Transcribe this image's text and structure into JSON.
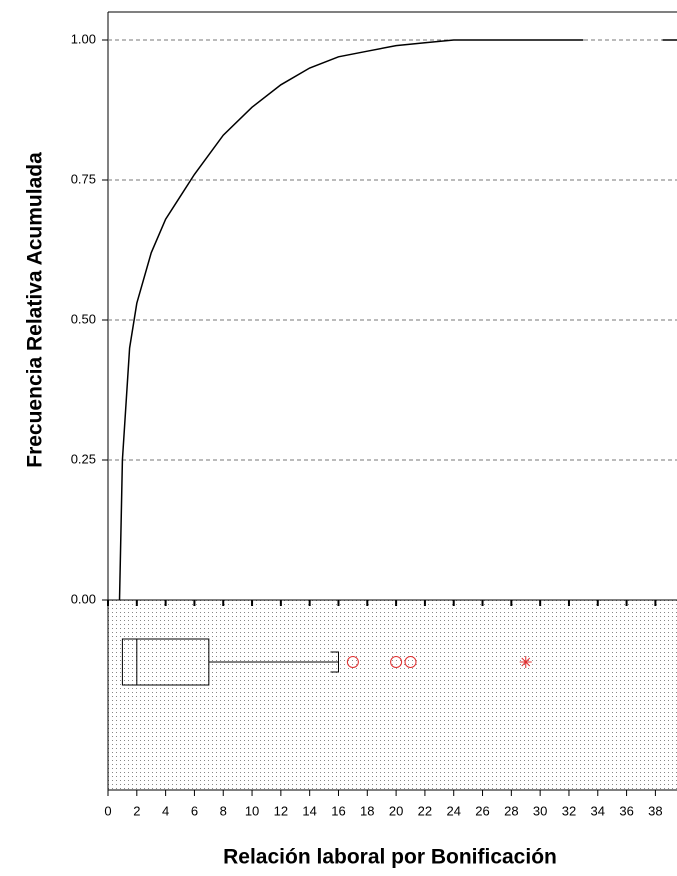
{
  "chart_data": {
    "type": "line",
    "ylabel": "Frecuencia Relativa Acumulada",
    "xlabel": "Relación laboral por Bonificación",
    "x": [
      0.8,
      1,
      1.5,
      2,
      3,
      4,
      5,
      6,
      8,
      10,
      12,
      14,
      16,
      18,
      20,
      22,
      24,
      26,
      33,
      34,
      38.5,
      39.5
    ],
    "series": [
      {
        "color": "#000000",
        "values": [
          0,
          0.25,
          0.45,
          0.53,
          0.62,
          0.68,
          0.72,
          0.76,
          0.83,
          0.88,
          0.92,
          0.95,
          0.97,
          0.98,
          0.99,
          0.995,
          1,
          1,
          1,
          null,
          1,
          1
        ]
      }
    ],
    "xlim": [
      0,
      39.5
    ],
    "ylim": [
      0,
      1.05
    ],
    "xticks": [
      0,
      2,
      4,
      6,
      8,
      10,
      12,
      14,
      16,
      18,
      20,
      22,
      24,
      26,
      28,
      30,
      32,
      34,
      36,
      38
    ],
    "yticks": [
      {
        "value": 0,
        "label": "0.00"
      },
      {
        "value": 0.25,
        "label": "0.25"
      },
      {
        "value": 0.5,
        "label": "0.50"
      },
      {
        "value": 0.75,
        "label": "0.75"
      },
      {
        "value": 1,
        "label": "1.00"
      }
    ],
    "grid": true,
    "boxplot": {
      "q1": 1,
      "median": 2,
      "q3": 7,
      "whisker_high": 16,
      "outliers": [
        17,
        20,
        21
      ],
      "extremes": [
        29
      ],
      "outlier_color": "#e03030"
    }
  }
}
